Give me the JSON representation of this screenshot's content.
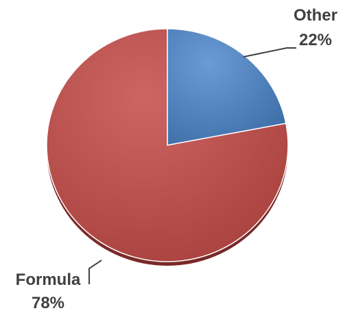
{
  "chart_data": {
    "type": "pie",
    "title": "",
    "start_angle_deg": 0,
    "direction": "clockwise",
    "slices": [
      {
        "name": "Other",
        "value": 22,
        "label": "22%",
        "color": "#4f81bd"
      },
      {
        "name": "Formula",
        "value": 78,
        "label": "78%",
        "color": "#c0504d"
      }
    ],
    "legend": "none",
    "data_labels": "outside-with-leader-lines"
  }
}
